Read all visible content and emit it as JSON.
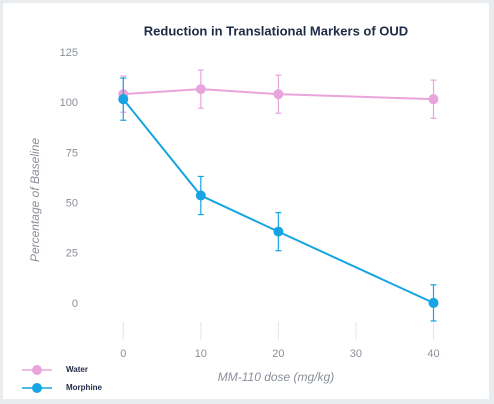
{
  "chart_data": {
    "type": "line",
    "title": "Reduction in Translational Markers of OUD",
    "x_label": "MM-110 dose (mg/kg)",
    "y_label": "Percentage of Baseline",
    "xlim": [
      -3,
      42
    ],
    "xticks": [
      0,
      10,
      20,
      30,
      40
    ],
    "ylim": [
      -13,
      127
    ],
    "yticks": [
      0,
      25,
      50,
      75,
      100,
      125
    ],
    "legend": "bottom-left",
    "series": [
      {
        "name": "Water",
        "color": "#e9a5db",
        "x": [
          0,
          10,
          20,
          40
        ],
        "values": [
          104.5,
          107,
          104.5,
          102
        ],
        "errors": [
          9,
          9.5,
          9.5,
          9.5
        ]
      },
      {
        "name": "Morphine",
        "color": "#17a4e2",
        "x": [
          0,
          10,
          20,
          40
        ],
        "values": [
          102,
          54,
          36,
          0.5
        ],
        "errors": [
          10.5,
          9.5,
          9.5,
          9
        ]
      }
    ]
  }
}
